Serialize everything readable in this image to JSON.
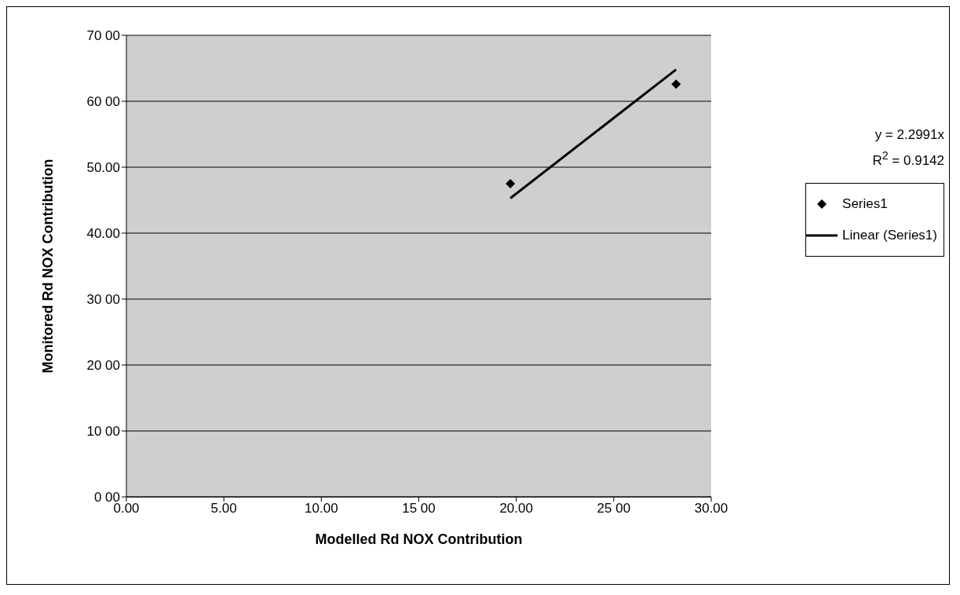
{
  "chart_data": {
    "type": "scatter",
    "xlabel": "Modelled Rd NOX Contribution",
    "ylabel": "Monitored Rd NOX Contribution",
    "xlim": [
      0,
      30
    ],
    "xticks": [
      {
        "value": 0,
        "label": "0.00"
      },
      {
        "value": 5,
        "label": "5.00"
      },
      {
        "value": 10,
        "label": "10.00"
      },
      {
        "value": 15,
        "label": "15 00"
      },
      {
        "value": 20,
        "label": "20.00"
      },
      {
        "value": 25,
        "label": "25 00"
      },
      {
        "value": 30,
        "label": "30.00"
      }
    ],
    "ylim": [
      0,
      70
    ],
    "yticks": [
      {
        "value": 0,
        "label": "0 00"
      },
      {
        "value": 10,
        "label": "10 00"
      },
      {
        "value": 20,
        "label": "20 00"
      },
      {
        "value": 30,
        "label": "30 00"
      },
      {
        "value": 40,
        "label": "40.00"
      },
      {
        "value": 50,
        "label": "50.00"
      },
      {
        "value": 60,
        "label": "60 00"
      },
      {
        "value": 70,
        "label": "70 00"
      }
    ],
    "grid": "y",
    "legend": "right",
    "x": [
      19.7,
      28.2
    ],
    "series": [
      {
        "name": "Series1",
        "color": "#000000",
        "marker": "diamond",
        "values": [
          47.5,
          62.6
        ]
      },
      {
        "name": "Linear (Series1)",
        "type": "line",
        "color": "#000000",
        "marker": "none",
        "line_style": "solid",
        "values": [
          45.3,
          64.8
        ]
      }
    ],
    "annotations": [
      "y = 2.2991x",
      "R$^{2}$ = 0.9142"
    ]
  }
}
